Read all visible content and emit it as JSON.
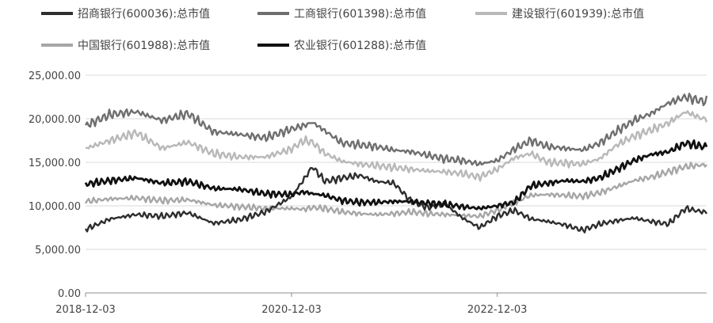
{
  "chart_data": {
    "type": "line",
    "title": "",
    "xlabel": "",
    "ylabel": "",
    "x_tick_labels": [
      "2018-12-03",
      "2020-12-03",
      "2022-12-03"
    ],
    "y_tick_labels": [
      "0.00",
      "5,000.00",
      "10,000.00",
      "15,000.00",
      "20,000.00",
      "25,000.00"
    ],
    "ylim": [
      0,
      25000
    ],
    "grid": "horizontal",
    "legend_position": "top",
    "series": [
      {
        "name": "招商银行(600036):总市值",
        "color": "#2e2e2e",
        "x": [
          "2018-12-03",
          "2019-03-01",
          "2019-06-01",
          "2019-09-01",
          "2019-12-01",
          "2020-03-01",
          "2020-06-01",
          "2020-09-01",
          "2020-12-01",
          "2021-01-15",
          "2021-02-15",
          "2021-04-01",
          "2021-06-01",
          "2021-08-01",
          "2021-10-01",
          "2021-12-01",
          "2022-02-01",
          "2022-04-01",
          "2022-06-01",
          "2022-08-01",
          "2022-10-01",
          "2022-12-03",
          "2023-02-01",
          "2023-04-01",
          "2023-06-01",
          "2023-08-01",
          "2023-10-01",
          "2023-12-01",
          "2024-02-01",
          "2024-04-01",
          "2024-06-01",
          "2024-08-01",
          "2024-10-01",
          "2024-12-01"
        ],
        "values": [
          7300,
          8500,
          9000,
          8800,
          9200,
          8000,
          8400,
          9300,
          11000,
          13000,
          14500,
          12800,
          13200,
          13500,
          12800,
          12600,
          10500,
          9800,
          10200,
          8600,
          7500,
          8800,
          9500,
          8500,
          8200,
          7800,
          7200,
          7900,
          8300,
          8600,
          8200,
          7900,
          9700,
          9300
        ]
      },
      {
        "name": "工商银行(601398):总市值",
        "color": "#6e6e6e",
        "x": [
          "2018-12-03",
          "2019-03-01",
          "2019-06-01",
          "2019-09-01",
          "2019-12-01",
          "2020-03-01",
          "2020-06-01",
          "2020-09-01",
          "2020-12-01",
          "2021-01-15",
          "2021-02-15",
          "2021-04-01",
          "2021-06-01",
          "2021-08-01",
          "2021-10-01",
          "2021-12-01",
          "2022-02-01",
          "2022-04-01",
          "2022-06-01",
          "2022-08-01",
          "2022-10-01",
          "2022-12-03",
          "2023-02-01",
          "2023-04-01",
          "2023-06-01",
          "2023-08-01",
          "2023-10-01",
          "2023-12-01",
          "2024-02-01",
          "2024-04-01",
          "2024-06-01",
          "2024-08-01",
          "2024-10-01",
          "2024-12-01"
        ],
        "values": [
          19200,
          20500,
          20800,
          19800,
          20600,
          18500,
          18200,
          17800,
          18800,
          19200,
          19600,
          18600,
          17200,
          17000,
          16800,
          16400,
          16200,
          15800,
          15400,
          15200,
          14800,
          15200,
          16500,
          17500,
          16800,
          16600,
          16400,
          17200,
          18600,
          19800,
          20600,
          21800,
          22500,
          22000
        ]
      },
      {
        "name": "建设银行(601939):总市值",
        "color": "#b8b8b8",
        "x": [
          "2018-12-03",
          "2019-03-01",
          "2019-06-01",
          "2019-09-01",
          "2019-12-01",
          "2020-03-01",
          "2020-06-01",
          "2020-09-01",
          "2020-12-01",
          "2021-01-15",
          "2021-02-15",
          "2021-04-01",
          "2021-06-01",
          "2021-08-01",
          "2021-10-01",
          "2021-12-01",
          "2022-02-01",
          "2022-04-01",
          "2022-06-01",
          "2022-08-01",
          "2022-10-01",
          "2022-12-03",
          "2023-02-01",
          "2023-04-01",
          "2023-06-01",
          "2023-08-01",
          "2023-10-01",
          "2023-12-01",
          "2024-02-01",
          "2024-04-01",
          "2024-06-01",
          "2024-08-01",
          "2024-10-01",
          "2024-12-01"
        ],
        "values": [
          16600,
          17500,
          18400,
          16600,
          17300,
          16000,
          15600,
          15600,
          16500,
          17500,
          17300,
          16000,
          15100,
          14800,
          14600,
          14400,
          14200,
          14000,
          13900,
          13700,
          13300,
          14200,
          15500,
          16000,
          15000,
          14900,
          14800,
          15400,
          17000,
          18000,
          18700,
          19500,
          20800,
          20000
        ]
      },
      {
        "name": "中国银行(601988):总市值",
        "color": "#a6a6a6",
        "x": [
          "2018-12-03",
          "2019-03-01",
          "2019-06-01",
          "2019-09-01",
          "2019-12-01",
          "2020-03-01",
          "2020-06-01",
          "2020-09-01",
          "2020-12-01",
          "2021-01-15",
          "2021-02-15",
          "2021-04-01",
          "2021-06-01",
          "2021-08-01",
          "2021-10-01",
          "2021-12-01",
          "2022-02-01",
          "2022-04-01",
          "2022-06-01",
          "2022-08-01",
          "2022-10-01",
          "2022-12-03",
          "2023-02-01",
          "2023-04-01",
          "2023-06-01",
          "2023-08-01",
          "2023-10-01",
          "2023-12-01",
          "2024-02-01",
          "2024-04-01",
          "2024-06-01",
          "2024-08-01",
          "2024-10-01",
          "2024-12-01"
        ],
        "values": [
          10500,
          10800,
          10900,
          10600,
          10700,
          10100,
          9900,
          9700,
          9700,
          9600,
          9800,
          9700,
          9300,
          9100,
          9000,
          9100,
          9300,
          9100,
          9000,
          8900,
          8800,
          9500,
          10400,
          11200,
          11300,
          11200,
          11100,
          11500,
          12200,
          12900,
          13300,
          13900,
          14500,
          14700
        ]
      },
      {
        "name": "农业银行(601288):总市值",
        "color": "#111111",
        "x": [
          "2018-12-03",
          "2019-03-01",
          "2019-06-01",
          "2019-09-01",
          "2019-12-01",
          "2020-03-01",
          "2020-06-01",
          "2020-09-01",
          "2020-12-01",
          "2021-01-15",
          "2021-02-15",
          "2021-04-01",
          "2021-06-01",
          "2021-08-01",
          "2021-10-01",
          "2021-12-01",
          "2022-02-01",
          "2022-04-01",
          "2022-06-01",
          "2022-08-01",
          "2022-10-01",
          "2022-12-03",
          "2023-02-01",
          "2023-04-01",
          "2023-06-01",
          "2023-08-01",
          "2023-10-01",
          "2023-12-01",
          "2024-02-01",
          "2024-04-01",
          "2024-06-01",
          "2024-08-01",
          "2024-10-01",
          "2024-12-01"
        ],
        "values": [
          12500,
          12900,
          13200,
          12600,
          12800,
          12000,
          11900,
          11400,
          11300,
          11600,
          11400,
          11200,
          10600,
          10400,
          10400,
          10500,
          10500,
          10300,
          10200,
          9900,
          9700,
          10000,
          10400,
          12300,
          12600,
          12900,
          12800,
          13200,
          14200,
          15200,
          15900,
          16200,
          17200,
          16800
        ]
      }
    ]
  }
}
